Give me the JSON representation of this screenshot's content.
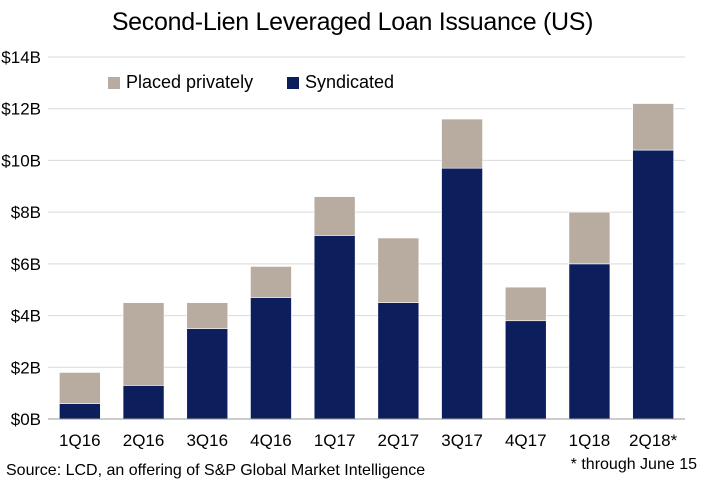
{
  "chart_data": {
    "type": "bar",
    "stacked": true,
    "title": "Second-Lien Leveraged Loan Issuance (US)",
    "categories": [
      "1Q16",
      "2Q16",
      "3Q16",
      "4Q16",
      "1Q17",
      "2Q17",
      "3Q17",
      "4Q17",
      "1Q18",
      "2Q18*"
    ],
    "series": [
      {
        "name": "Syndicated",
        "color": "#0c1f5c",
        "values": [
          0.6,
          1.3,
          3.5,
          4.7,
          7.1,
          4.5,
          9.7,
          3.8,
          6.0,
          10.4
        ]
      },
      {
        "name": "Placed privately",
        "color": "#b8aba0",
        "values": [
          1.2,
          3.2,
          1.0,
          1.2,
          1.5,
          2.5,
          1.9,
          1.3,
          2.0,
          1.8
        ]
      }
    ],
    "ylim": [
      0,
      14
    ],
    "yticks": [
      0,
      2,
      4,
      6,
      8,
      10,
      12,
      14
    ],
    "ytick_labels": [
      "$0B",
      "$2B",
      "$4B",
      "$6B",
      "$8B",
      "$10B",
      "$12B",
      "$14B"
    ],
    "grid": true,
    "legend": [
      "Placed privately",
      "Syndicated"
    ],
    "legend_placement": "top-left"
  },
  "source": "Source: LCD, an offering of S&P Global Market Intelligence",
  "footnote": "* through June 15"
}
